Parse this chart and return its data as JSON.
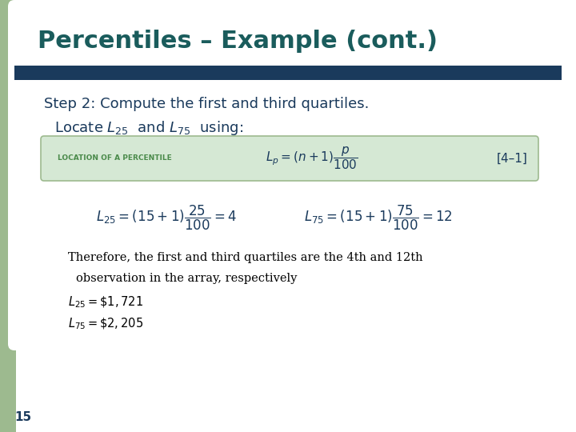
{
  "title": "Percentiles – Example (cont.)",
  "title_color": "#1a5c5c",
  "title_fontsize": 22,
  "bar_color": "#1a3a5c",
  "bg_color": "#ffffff",
  "left_accent_color": "#9dba8f",
  "box_bg_color": "#d5e8d4",
  "box_border_color": "#9dba8f",
  "box_label": "LOCATION OF A PERCENTILE",
  "box_label_color": "#4a8a4a",
  "box_ref": "[4–1]",
  "therefore_text": "Therefore, the first and third quartiles are the 4th and 12th",
  "observation_text": "observation in the array, respectively",
  "l25_val": "$L_{25} = \\$1,721$",
  "l75_val": "$L_{75} = \\$2,205$",
  "slide_number": "15",
  "slide_number_color": "#1a3a5c",
  "text_color": "#1a3a5c"
}
